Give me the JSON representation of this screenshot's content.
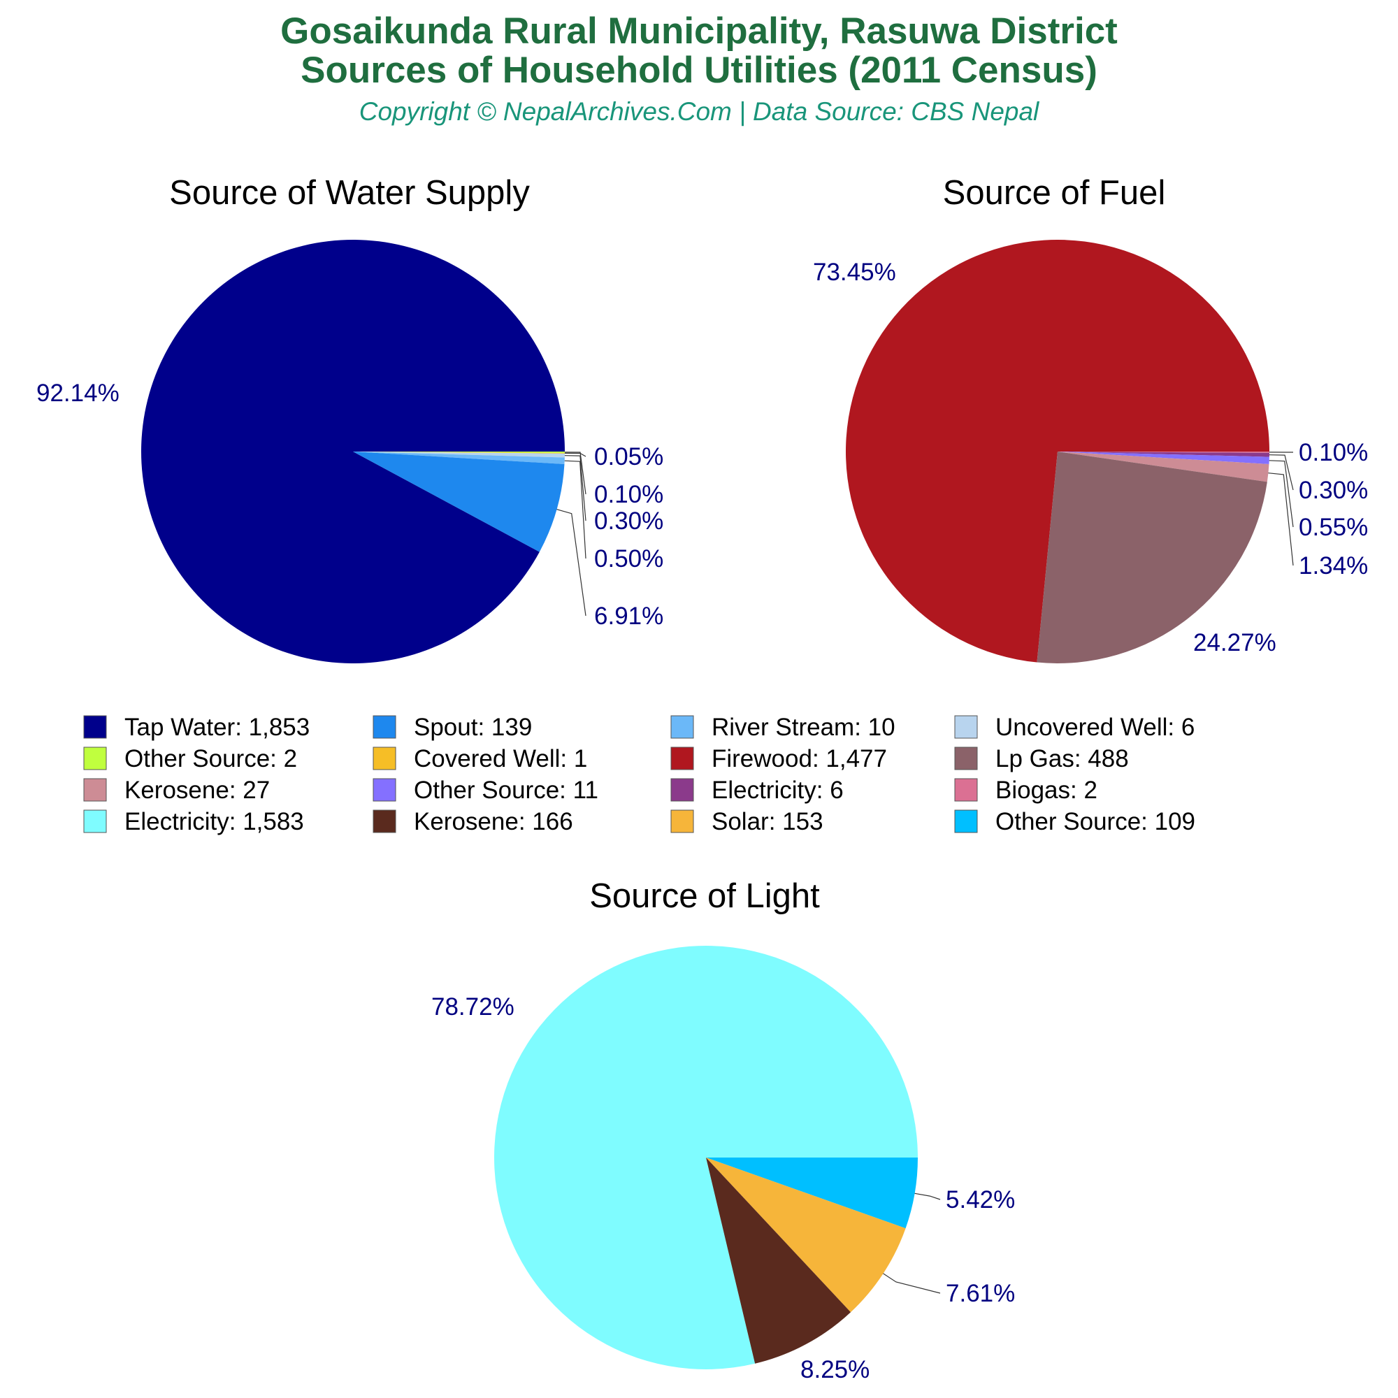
{
  "header": {
    "title_line1": "Gosaikunda Rural Municipality, Rasuwa District",
    "title_line2": "Sources of Household Utilities (2011 Census)",
    "subtitle": "Copyright © NepalArchives.Com | Data Source: CBS Nepal"
  },
  "chart_data": [
    {
      "type": "pie",
      "title": "Source of Water Supply",
      "slices": [
        {
          "name": "Tap Water",
          "value": 1853,
          "percent_label": "92.14%",
          "color": "#00008b"
        },
        {
          "name": "Other Source",
          "value": 2,
          "percent_label": "0.10%",
          "color": "#c0ff3e"
        },
        {
          "name": "Covered Well",
          "value": 1,
          "percent_label": "0.05%",
          "color": "#f6be26"
        },
        {
          "name": "Uncovered Well",
          "value": 6,
          "percent_label": "0.30%",
          "color": "#b8d4ee"
        },
        {
          "name": "River Stream",
          "value": 10,
          "percent_label": "0.50%",
          "color": "#6bb8f8"
        },
        {
          "name": "Spout",
          "value": 139,
          "percent_label": "6.91%",
          "color": "#1e88ee"
        }
      ]
    },
    {
      "type": "pie",
      "title": "Source of Fuel",
      "slices": [
        {
          "name": "Firewood",
          "value": 1477,
          "percent_label": "73.45%",
          "color": "#b0171f"
        },
        {
          "name": "Biogas",
          "value": 2,
          "percent_label": "0.10%",
          "color": "#db7093"
        },
        {
          "name": "Electricity",
          "value": 6,
          "percent_label": "0.30%",
          "color": "#8b3a8b"
        },
        {
          "name": "Other Source",
          "value": 11,
          "percent_label": "0.55%",
          "color": "#8470ff"
        },
        {
          "name": "Kerosene",
          "value": 27,
          "percent_label": "1.34%",
          "color": "#cd8c95"
        },
        {
          "name": "Lp Gas",
          "value": 488,
          "percent_label": "24.27%",
          "color": "#8b6269"
        }
      ]
    },
    {
      "type": "pie",
      "title": "Source of Light",
      "slices": [
        {
          "name": "Electricity",
          "value": 1583,
          "percent_label": "78.72%",
          "color": "#7ffcff"
        },
        {
          "name": "Other Source",
          "value": 109,
          "percent_label": "5.42%",
          "color": "#00bfff"
        },
        {
          "name": "Solar",
          "value": 153,
          "percent_label": "7.61%",
          "color": "#f6b53a"
        },
        {
          "name": "Kerosene",
          "value": 166,
          "percent_label": "8.25%",
          "color": "#5a2a1e"
        }
      ]
    }
  ],
  "legend": [
    {
      "label": "Tap Water: 1,853",
      "color": "#00008b"
    },
    {
      "label": "Spout: 139",
      "color": "#1e88ee"
    },
    {
      "label": "River Stream: 10",
      "color": "#6bb8f8"
    },
    {
      "label": "Uncovered Well: 6",
      "color": "#b8d4ee"
    },
    {
      "label": "Other Source: 2",
      "color": "#c0ff3e"
    },
    {
      "label": "Covered Well: 1",
      "color": "#f6be26"
    },
    {
      "label": "Firewood: 1,477",
      "color": "#b0171f"
    },
    {
      "label": "Lp Gas: 488",
      "color": "#8b6269"
    },
    {
      "label": "Kerosene: 27",
      "color": "#cd8c95"
    },
    {
      "label": "Other Source: 11",
      "color": "#8470ff"
    },
    {
      "label": "Electricity: 6",
      "color": "#8b3a8b"
    },
    {
      "label": "Biogas: 2",
      "color": "#db7093"
    },
    {
      "label": "Electricity: 1,583",
      "color": "#7ffcff"
    },
    {
      "label": "Kerosene: 166",
      "color": "#5a2a1e"
    },
    {
      "label": "Solar: 153",
      "color": "#f6b53a"
    },
    {
      "label": "Other Source: 109",
      "color": "#00bfff"
    }
  ]
}
